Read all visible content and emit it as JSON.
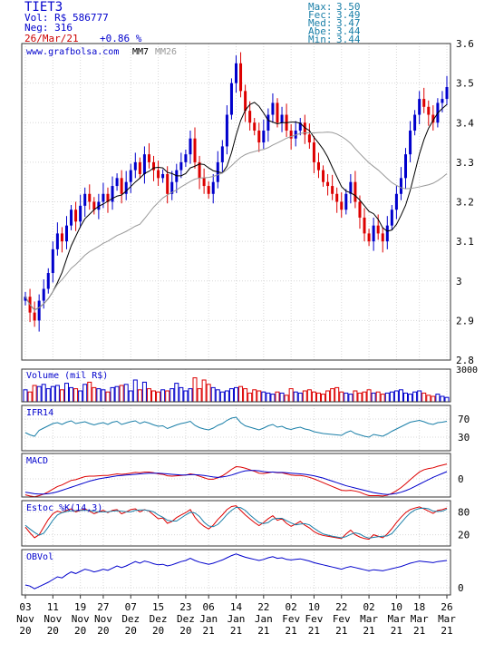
{
  "header": {
    "ticker": "TIET3",
    "vol_label": "Vol: R$ 586777",
    "neg_label": "Neg: 316",
    "date": "26/Mar/21",
    "change": "+0.86 %",
    "stats": [
      {
        "label": "Max:",
        "value": "3.50"
      },
      {
        "label": "Fec:",
        "value": "3.49"
      },
      {
        "label": "Med:",
        "value": "3.47"
      },
      {
        "label": "Abe:",
        "value": "3.44"
      },
      {
        "label": "Min:",
        "value": "3.44"
      }
    ]
  },
  "colors": {
    "up": "#0000cc",
    "down": "#dd0000",
    "ma_short": "#000000",
    "ma_long": "#999999",
    "indicator": "#1a7fa8",
    "frame": "#333333"
  },
  "chart_data": [
    {
      "type": "candlestick",
      "panel": "price",
      "watermark": "www.grafbolsa.com",
      "legend": [
        "MM7",
        "MM26"
      ],
      "yticks": [
        "2.8",
        "2.9",
        "3",
        "3.1",
        "3.2",
        "3.3",
        "3.4",
        "3.5",
        "3.6"
      ],
      "ylim": [
        2.8,
        3.6
      ],
      "xticks": [
        {
          "day": "03",
          "month": "Nov",
          "year": "20"
        },
        {
          "day": "11",
          "month": "Nov",
          "year": "20"
        },
        {
          "day": "19",
          "month": "Nov",
          "year": "20"
        },
        {
          "day": "27",
          "month": "Nov",
          "year": "20"
        },
        {
          "day": "07",
          "month": "Dez",
          "year": "20"
        },
        {
          "day": "15",
          "month": "Dez",
          "year": "20"
        },
        {
          "day": "23",
          "month": "Dez",
          "year": "20"
        },
        {
          "day": "06",
          "month": "Jan",
          "year": "21"
        },
        {
          "day": "14",
          "month": "Jan",
          "year": "21"
        },
        {
          "day": "22",
          "month": "Jan",
          "year": "21"
        },
        {
          "day": "02",
          "month": "Fev",
          "year": "21"
        },
        {
          "day": "10",
          "month": "Fev",
          "year": "21"
        },
        {
          "day": "22",
          "month": "Fev",
          "year": "21"
        },
        {
          "day": "02",
          "month": "Mar",
          "year": "21"
        },
        {
          "day": "10",
          "month": "Mar",
          "year": "21"
        },
        {
          "day": "18",
          "month": "Mar",
          "year": "21"
        },
        {
          "day": "26",
          "month": "Mar",
          "year": "21"
        }
      ],
      "closes": [
        2.96,
        2.92,
        2.9,
        2.95,
        2.98,
        3.02,
        3.08,
        3.12,
        3.1,
        3.14,
        3.18,
        3.15,
        3.19,
        3.22,
        3.2,
        3.18,
        3.2,
        3.22,
        3.2,
        3.24,
        3.26,
        3.22,
        3.25,
        3.28,
        3.3,
        3.27,
        3.32,
        3.3,
        3.28,
        3.26,
        3.27,
        3.22,
        3.25,
        3.28,
        3.3,
        3.32,
        3.36,
        3.3,
        3.26,
        3.24,
        3.22,
        3.25,
        3.3,
        3.34,
        3.42,
        3.5,
        3.55,
        3.48,
        3.43,
        3.4,
        3.38,
        3.35,
        3.38,
        3.42,
        3.45,
        3.4,
        3.42,
        3.38,
        3.36,
        3.38,
        3.4,
        3.37,
        3.35,
        3.3,
        3.28,
        3.25,
        3.24,
        3.22,
        3.2,
        3.18,
        3.22,
        3.25,
        3.2,
        3.16,
        3.12,
        3.1,
        3.14,
        3.12,
        3.1,
        3.14,
        3.18,
        3.22,
        3.26,
        3.32,
        3.38,
        3.42,
        3.46,
        3.44,
        3.42,
        3.4,
        3.45,
        3.46,
        3.49
      ]
    },
    {
      "type": "bar",
      "panel": "volume",
      "label": "Volume (mil R$)",
      "ytick": "3000",
      "values": [
        1100,
        900,
        1500,
        1400,
        1600,
        1200,
        1400,
        1500,
        1100,
        1700,
        1300,
        1200,
        1000,
        1600,
        1800,
        1300,
        1200,
        1100,
        900,
        1300,
        1400,
        1500,
        1600,
        1000,
        2000,
        1100,
        1800,
        1200,
        1000,
        900,
        1100,
        1000,
        1200,
        1700,
        1300,
        1000,
        1200,
        2200,
        1200,
        2000,
        1600,
        1300,
        1100,
        900,
        1000,
        1200,
        1300,
        1400,
        1200,
        800,
        1100,
        1000,
        900,
        800,
        700,
        900,
        800,
        600,
        1200,
        900,
        800,
        1000,
        1100,
        900,
        800,
        700,
        1000,
        1200,
        1300,
        900,
        800,
        700,
        1000,
        800,
        900,
        1100,
        800,
        900,
        700,
        800,
        900,
        1000,
        1100,
        800,
        700,
        900,
        1000,
        800,
        600,
        500,
        700,
        500,
        400
      ]
    },
    {
      "type": "line",
      "panel": "rsi",
      "label": "IFR14",
      "yticks": [
        "70",
        "30"
      ],
      "ylim": [
        0,
        100
      ],
      "values": [
        40,
        35,
        32,
        45,
        50,
        55,
        60,
        62,
        58,
        63,
        66,
        60,
        62,
        64,
        60,
        57,
        60,
        62,
        58,
        63,
        65,
        58,
        61,
        64,
        66,
        60,
        64,
        61,
        57,
        54,
        55,
        49,
        53,
        57,
        60,
        62,
        65,
        56,
        51,
        48,
        46,
        50,
        56,
        60,
        67,
        72,
        74,
        62,
        55,
        52,
        49,
        46,
        50,
        55,
        58,
        52,
        54,
        49,
        47,
        50,
        52,
        48,
        46,
        42,
        40,
        38,
        37,
        36,
        35,
        34,
        40,
        44,
        38,
        35,
        32,
        30,
        36,
        34,
        32,
        37,
        43,
        48,
        53,
        58,
        63,
        65,
        67,
        64,
        60,
        58,
        62,
        63,
        65
      ]
    },
    {
      "type": "line",
      "panel": "macd",
      "label": "MACD",
      "ytick": "0",
      "series": [
        {
          "color": "#dd0000",
          "values": [
            -4.2,
            -4.5,
            -4.7,
            -4.4,
            -4,
            -3.4,
            -2.7,
            -2,
            -1.6,
            -1,
            -0.4,
            -0.2,
            0.2,
            0.6,
            0.7,
            0.7,
            0.8,
            0.9,
            0.9,
            1.1,
            1.3,
            1.2,
            1.3,
            1.5,
            1.7,
            1.6,
            1.8,
            1.8,
            1.6,
            1.3,
            1.2,
            0.8,
            0.7,
            0.8,
            0.9,
            1,
            1.3,
            1.1,
            0.7,
            0.3,
            -0.1,
            -0.1,
            0.3,
            0.8,
            1.6,
            2.5,
            3.2,
            3.1,
            2.8,
            2.4,
            2,
            1.5,
            1.4,
            1.6,
            1.8,
            1.6,
            1.6,
            1.3,
            1,
            0.9,
            0.9,
            0.7,
            0.4,
            0,
            -0.5,
            -1,
            -1.5,
            -2,
            -2.5,
            -3,
            -3.1,
            -3,
            -3.2,
            -3.5,
            -4,
            -4.4,
            -4.4,
            -4.4,
            -4.5,
            -4.3,
            -3.8,
            -3.1,
            -2.3,
            -1.3,
            -0.2,
            0.8,
            1.8,
            2.4,
            2.7,
            2.9,
            3.3,
            3.6,
            3.9
          ]
        },
        {
          "color": "#0000cc",
          "values": [
            -3.5,
            -3.7,
            -3.9,
            -4,
            -4,
            -3.9,
            -3.7,
            -3.4,
            -3,
            -2.6,
            -2.2,
            -1.8,
            -1.4,
            -1,
            -0.6,
            -0.3,
            0,
            0.2,
            0.4,
            0.6,
            0.8,
            0.9,
            1,
            1.1,
            1.2,
            1.3,
            1.4,
            1.5,
            1.5,
            1.5,
            1.4,
            1.3,
            1.2,
            1.1,
            1,
            1,
            1.1,
            1.1,
            1,
            0.9,
            0.7,
            0.5,
            0.4,
            0.5,
            0.7,
            1,
            1.4,
            1.8,
            2.1,
            2.2,
            2.2,
            2.1,
            1.9,
            1.8,
            1.8,
            1.7,
            1.7,
            1.6,
            1.5,
            1.4,
            1.3,
            1.2,
            1,
            0.8,
            0.5,
            0.2,
            -0.2,
            -0.6,
            -1,
            -1.4,
            -1.8,
            -2.1,
            -2.4,
            -2.7,
            -3,
            -3.3,
            -3.6,
            -3.8,
            -4,
            -4.1,
            -4,
            -3.8,
            -3.5,
            -3.1,
            -2.6,
            -2,
            -1.4,
            -0.8,
            -0.2,
            0.4,
            0.9,
            1.4,
            1.9
          ]
        }
      ]
    },
    {
      "type": "line",
      "panel": "stochastic",
      "label": "Estoc %K(14,3)",
      "yticks": [
        "80",
        "20"
      ],
      "ylim": [
        0,
        100
      ],
      "series": [
        {
          "color": "#dd0000",
          "values": [
            40,
            25,
            12,
            20,
            40,
            60,
            75,
            82,
            78,
            84,
            88,
            80,
            84,
            88,
            82,
            75,
            80,
            84,
            78,
            84,
            86,
            75,
            80,
            86,
            88,
            80,
            86,
            82,
            72,
            62,
            64,
            50,
            55,
            65,
            72,
            78,
            86,
            66,
            52,
            42,
            35,
            45,
            60,
            72,
            86,
            94,
            96,
            84,
            72,
            62,
            52,
            44,
            52,
            62,
            70,
            58,
            62,
            50,
            42,
            48,
            55,
            45,
            38,
            28,
            22,
            18,
            16,
            14,
            12,
            10,
            22,
            32,
            20,
            14,
            10,
            8,
            20,
            16,
            12,
            22,
            36,
            52,
            66,
            78,
            86,
            90,
            93,
            88,
            82,
            76,
            84,
            86,
            90
          ]
        },
        {
          "color": "#1a7fa8",
          "values": [
            45,
            35,
            26,
            19,
            24,
            40,
            58,
            72,
            78,
            81,
            83,
            83,
            84,
            84,
            84,
            81,
            80,
            80,
            80,
            82,
            83,
            82,
            80,
            80,
            84,
            85,
            85,
            83,
            80,
            72,
            66,
            58,
            56,
            56,
            64,
            72,
            79,
            77,
            68,
            53,
            43,
            41,
            47,
            59,
            73,
            84,
            92,
            91,
            84,
            72,
            62,
            52,
            49,
            52,
            61,
            63,
            63,
            57,
            51,
            46,
            48,
            49,
            46,
            37,
            29,
            22,
            19,
            16,
            14,
            12,
            15,
            21,
            25,
            22,
            15,
            11,
            13,
            15,
            16,
            17,
            23,
            37,
            51,
            65,
            77,
            85,
            89,
            90,
            88,
            82,
            81,
            82,
            87
          ]
        }
      ]
    },
    {
      "type": "line",
      "panel": "obv",
      "label": "OBVol",
      "ytick": "0",
      "values": [
        5,
        3,
        -2,
        2,
        6,
        10,
        15,
        20,
        18,
        24,
        29,
        26,
        30,
        34,
        32,
        29,
        31,
        34,
        32,
        36,
        40,
        37,
        40,
        44,
        48,
        45,
        49,
        47,
        44,
        42,
        43,
        40,
        42,
        45,
        48,
        50,
        54,
        50,
        47,
        45,
        43,
        45,
        48,
        51,
        55,
        59,
        62,
        59,
        56,
        54,
        52,
        50,
        52,
        55,
        57,
        54,
        55,
        52,
        51,
        52,
        53,
        51,
        49,
        46,
        44,
        42,
        40,
        38,
        36,
        34,
        37,
        39,
        37,
        35,
        33,
        31,
        33,
        32,
        31,
        33,
        35,
        37,
        39,
        42,
        45,
        47,
        49,
        48,
        47,
        46,
        48,
        49,
        50
      ]
    }
  ]
}
